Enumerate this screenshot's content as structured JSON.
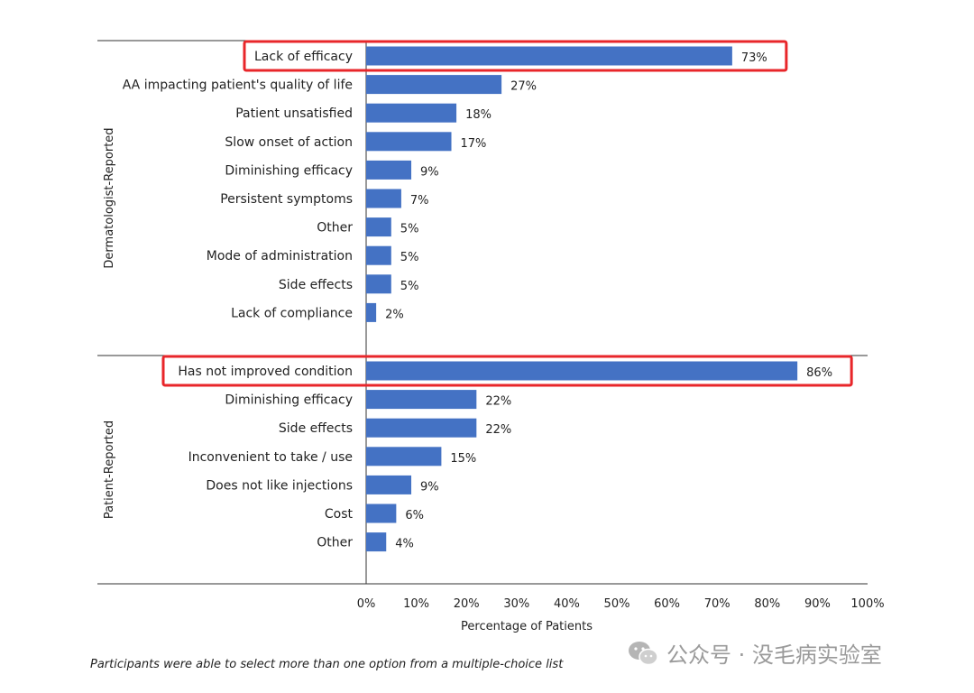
{
  "chart_data": {
    "type": "bar",
    "orientation": "horizontal",
    "xlabel": "Percentage of Patients",
    "xlim": [
      0,
      100
    ],
    "xticks": [
      "0%",
      "10%",
      "20%",
      "30%",
      "40%",
      "50%",
      "60%",
      "70%",
      "80%",
      "90%",
      "100%"
    ],
    "grid": false,
    "bar_color": "#4472C4",
    "highlight_color": "#E8262A",
    "groups": [
      {
        "name": "Dermatologist-Reported",
        "categories": [
          "Lack of efficacy",
          "AA impacting patient's quality of life",
          "Patient unsatisfied",
          "Slow onset of action",
          "Diminishing efficacy",
          "Persistent symptoms",
          "Other",
          "Mode of administration",
          "Side effects",
          "Lack of compliance"
        ],
        "values": [
          73,
          27,
          18,
          17,
          9,
          7,
          5,
          5,
          5,
          2
        ],
        "labels": [
          "73%",
          "27%",
          "18%",
          "17%",
          "9%",
          "7%",
          "5%",
          "5%",
          "5%",
          "2%"
        ],
        "highlighted": [
          0
        ]
      },
      {
        "name": "Patient-Reported",
        "categories": [
          "Has not improved condition",
          "Diminishing efficacy",
          "Side effects",
          "Inconvenient to take / use",
          "Does not like injections",
          "Cost",
          "Other"
        ],
        "values": [
          86,
          22,
          22,
          15,
          9,
          6,
          4
        ],
        "labels": [
          "86%",
          "22%",
          "22%",
          "15%",
          "9%",
          "6%",
          "4%"
        ],
        "highlighted": [
          0
        ]
      }
    ]
  },
  "footnote": "Participants were able to select more than one option from a multiple-choice list",
  "watermark": {
    "text": "公众号 · 没毛病实验室",
    "icon": "wechat-icon"
  }
}
